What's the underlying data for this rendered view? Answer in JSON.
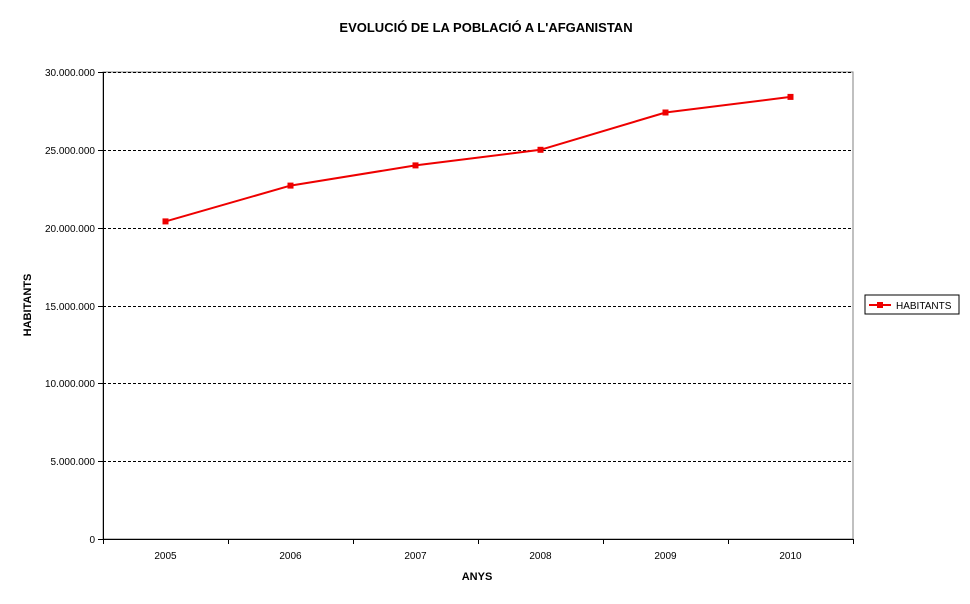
{
  "chart_data": {
    "type": "line",
    "title": "EVOLUCIÓ DE LA POBLACIÓ A L'AFGANISTAN",
    "xlabel": "ANYS",
    "ylabel": "HABITANTS",
    "categories": [
      "2005",
      "2006",
      "2007",
      "2008",
      "2009",
      "2010"
    ],
    "series": [
      {
        "name": "HABITANTS",
        "color": "#ee0000",
        "values": [
          20400000,
          22700000,
          24000000,
          25000000,
          27400000,
          28400000
        ]
      }
    ],
    "ylim": [
      0,
      30000000
    ],
    "yticks": [
      0,
      5000000,
      10000000,
      15000000,
      20000000,
      25000000,
      30000000
    ],
    "ytick_labels": [
      "0",
      "5.000.000",
      "10.000.000",
      "15.000.000",
      "20.000.000",
      "25.000.000",
      "30.000.000"
    ],
    "grid": "horizontal dashed",
    "legend_position": "right"
  }
}
